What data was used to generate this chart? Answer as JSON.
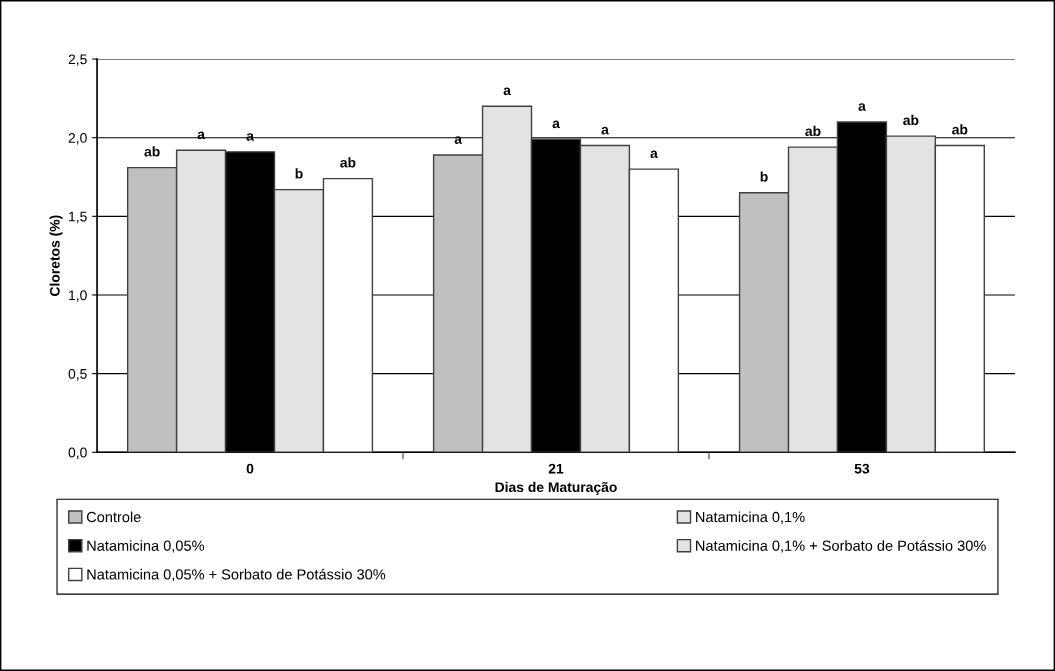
{
  "chart_data": {
    "type": "bar",
    "xlabel": "Dias de Maturação",
    "ylabel": "Cloretos (%)",
    "categories": [
      "0",
      "21",
      "53"
    ],
    "series": [
      {
        "name": "Controle",
        "color": "#c0c0c0",
        "values": [
          1.81,
          1.89,
          1.65
        ],
        "value_labels": [
          "ab",
          "a",
          "b"
        ]
      },
      {
        "name": "Natamicina 0,1%",
        "color": "#e3e3e3",
        "values": [
          1.92,
          2.2,
          1.94
        ],
        "value_labels": [
          "a",
          "a",
          "ab"
        ]
      },
      {
        "name": "Natamicina 0,05%",
        "color": "#000000",
        "values": [
          1.91,
          1.99,
          2.1
        ],
        "value_labels": [
          "a",
          "a",
          "a"
        ]
      },
      {
        "name": "Natamicina 0,1% + Sorbato de Potássio 30%",
        "color": "#e3e3e3",
        "values": [
          1.67,
          1.95,
          2.01
        ],
        "value_labels": [
          "b",
          "a",
          "ab"
        ]
      },
      {
        "name": "Natamicina 0,05% + Sorbato de Potássio 30%",
        "color": "#ffffff",
        "values": [
          1.74,
          1.8,
          1.95
        ],
        "value_labels": [
          "ab",
          "a",
          "ab"
        ]
      }
    ],
    "ylim": [
      0,
      2.5
    ],
    "yticks": [
      {
        "value": 0,
        "label": "0,0"
      },
      {
        "value": 0.5,
        "label": "0,5"
      },
      {
        "value": 1,
        "label": "1,0"
      },
      {
        "value": 1.5,
        "label": "1,5"
      },
      {
        "value": 2,
        "label": "2,0"
      },
      {
        "value": 2.5,
        "label": "2,5"
      }
    ],
    "grid": "y",
    "legend": "bottom"
  }
}
